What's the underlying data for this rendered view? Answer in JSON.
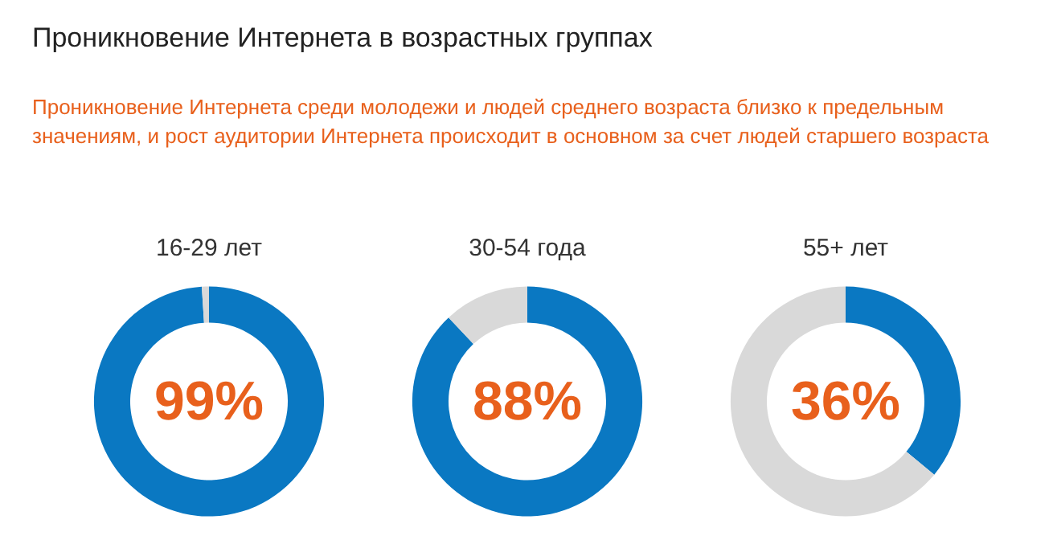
{
  "chart_data": [
    {
      "type": "other",
      "title": "Проникновение Интернета в возрастных группах",
      "subtitle": "Проникновение Интернета среди молодежи и людей среднего возраста близко к предельным значениям, и рост аудитории Интернета происходит в основном за счет людей старшего возраста"
    },
    {
      "type": "donut",
      "title": "16-29 лет",
      "categories": [
        null,
        null
      ],
      "values": [
        99,
        1
      ],
      "colors": [
        "#0a78c2",
        "#d9d9d9"
      ],
      "value_labels": [
        "99%",
        null
      ]
    },
    {
      "type": "donut",
      "title": "30-54 года",
      "categories": [
        null,
        null
      ],
      "values": [
        88,
        12
      ],
      "colors": [
        "#0a78c2",
        "#d9d9d9"
      ],
      "value_labels": [
        "88%",
        null
      ]
    },
    {
      "type": "donut",
      "title": "55+ лет",
      "categories": [
        null,
        null
      ],
      "values": [
        36,
        64
      ],
      "colors": [
        "#0a78c2",
        "#d9d9d9"
      ],
      "value_labels": [
        "36%",
        null
      ]
    }
  ]
}
